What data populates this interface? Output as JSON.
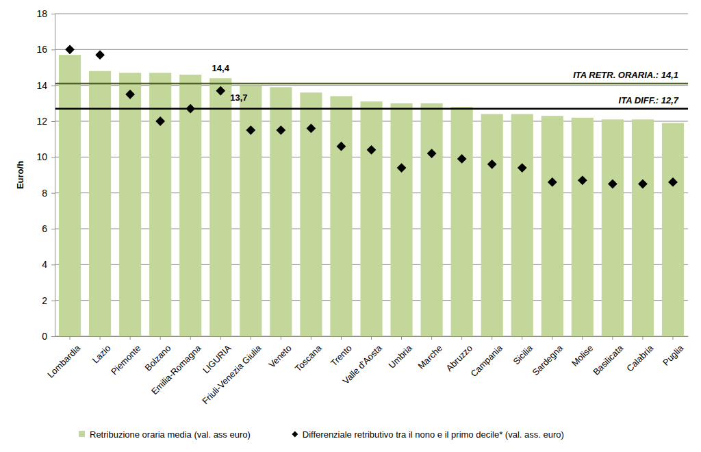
{
  "chart_data": {
    "type": "bar",
    "categories": [
      "Lombardia",
      "Lazio",
      "Piemonte",
      "Bolzano",
      "Emilia-Romagna",
      "LIGURIA",
      "Friuli-Venezia Giulia",
      "Veneto",
      "Toscana",
      "Trento",
      "Valle d'Aosta",
      "Umbria",
      "Marche",
      "Abruzzo",
      "Campania",
      "Sicilia",
      "Sardegna",
      "Molise",
      "Basilicata",
      "Calabria",
      "Puglia"
    ],
    "series": [
      {
        "name": "Retribuzione oraria media (val. ass euro)",
        "type": "bar",
        "color": "#c4d79b",
        "values": [
          15.7,
          14.8,
          14.7,
          14.7,
          14.6,
          14.4,
          14.0,
          13.9,
          13.6,
          13.4,
          13.1,
          13.0,
          13.0,
          12.8,
          12.4,
          12.4,
          12.3,
          12.2,
          12.1,
          12.1,
          11.9
        ]
      },
      {
        "name": "Differenziale retributivo tra il nono e il primo decile* (val. ass. euro)",
        "type": "scatter",
        "marker": "diamond",
        "color": "#000000",
        "values": [
          16.0,
          15.7,
          13.5,
          12.0,
          12.7,
          13.7,
          11.5,
          11.5,
          11.6,
          10.6,
          10.4,
          9.4,
          10.2,
          9.9,
          9.6,
          9.4,
          8.6,
          8.7,
          8.5,
          8.5,
          8.6
        ]
      }
    ],
    "y_label": "Euro/h",
    "ylim": [
      0,
      18
    ],
    "yticks": [
      0,
      2,
      4,
      6,
      8,
      10,
      12,
      14,
      16,
      18
    ],
    "grid": true,
    "legend": "bottom",
    "reference_lines": [
      {
        "value": 14.1,
        "label": "ITA RETR. ORARIA.: 14,1",
        "color": "#4f6228"
      },
      {
        "value": 12.7,
        "label": "ITA DIFF.: 12,7",
        "color": "#000000"
      }
    ],
    "annotations": [
      {
        "text": "14,4",
        "x": "LIGURIA",
        "y": 14.4
      },
      {
        "text": "13,7",
        "x": "LIGURIA",
        "y": 13.7
      }
    ]
  }
}
